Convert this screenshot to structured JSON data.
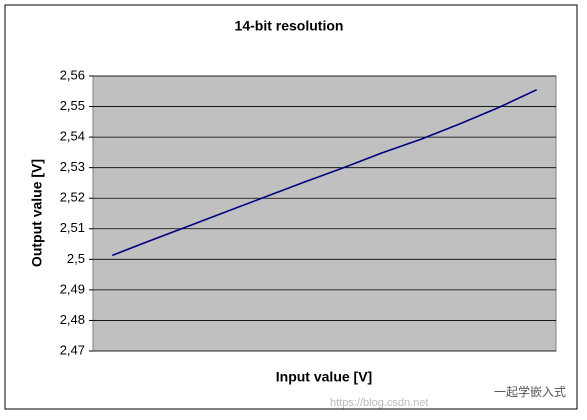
{
  "chart_data": {
    "type": "line",
    "title": "14-bit resolution",
    "x_label": "Input value [V]",
    "y_label": "Output value [V]",
    "categories": [
      null,
      null,
      null,
      null,
      null,
      null,
      null,
      null,
      null,
      null,
      null,
      null
    ],
    "values": [
      2.5013,
      2.5062,
      2.511,
      2.5158,
      2.5206,
      2.5254,
      2.53,
      2.5349,
      2.5393,
      2.5443,
      2.5496,
      2.5555
    ],
    "color": "#000080",
    "ylim": [
      2.47,
      2.56
    ],
    "yticks": [
      {
        "value": 2.47,
        "label": "2,47"
      },
      {
        "value": 2.48,
        "label": "2,48"
      },
      {
        "value": 2.49,
        "label": "2,49"
      },
      {
        "value": 2.5,
        "label": "2,5"
      },
      {
        "value": 2.51,
        "label": "2,51"
      },
      {
        "value": 2.52,
        "label": "2,52"
      },
      {
        "value": 2.53,
        "label": "2,53"
      },
      {
        "value": 2.54,
        "label": "2,54"
      },
      {
        "value": 2.55,
        "label": "2,55"
      },
      {
        "value": 2.56,
        "label": "2,56"
      }
    ],
    "grid": true,
    "plot_background": "#c0c0c0"
  },
  "watermark": {
    "brand": "一起学嵌入式",
    "url": "https://blog.csdn.net"
  }
}
